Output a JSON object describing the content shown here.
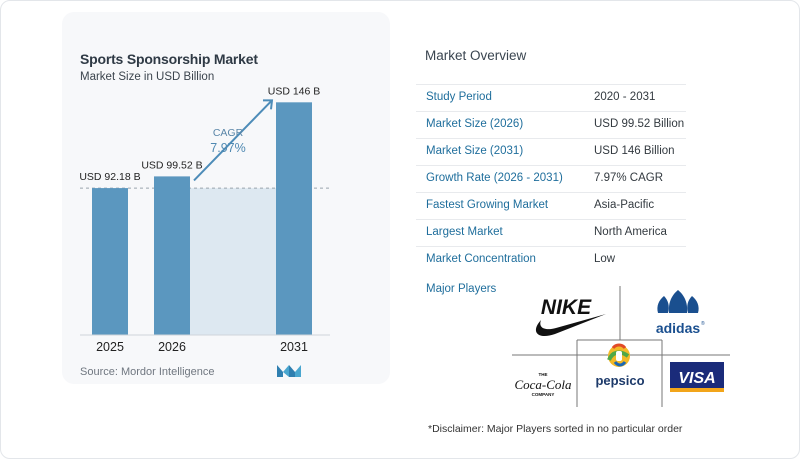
{
  "chart": {
    "title": "Sports Sponsorship Market",
    "subtitle": "Market Size in USD Billion",
    "source": "Source:  Mordor Intelligence",
    "cagr_label": "CAGR",
    "cagr_value": "7.97%"
  },
  "chart_data": {
    "type": "bar",
    "categories": [
      "2025",
      "2026",
      "2031"
    ],
    "values": [
      92.18,
      99.52,
      146
    ],
    "data_labels": [
      "USD 92.18 B",
      "USD 99.52 B",
      "USD 146 B"
    ],
    "title": "Sports Sponsorship Market",
    "subtitle": "Market Size in USD Billion",
    "xlabel": "",
    "ylabel": "",
    "ylim": [
      0,
      160
    ],
    "grid": false,
    "colors": {
      "bar": "#5b97bf",
      "band": "#dde8f1",
      "arrow": "#4d8cb8"
    }
  },
  "overview": {
    "title": "Market Overview",
    "rows": [
      {
        "label": "Study Period",
        "value": "2020 - 2031"
      },
      {
        "label": "Market Size (2026)",
        "value": "USD 99.52 Billion"
      },
      {
        "label": "Market Size (2031)",
        "value": "USD 146 Billion"
      },
      {
        "label": "Growth Rate (2026 - 2031)",
        "value": "7.97% CAGR"
      },
      {
        "label": "Fastest Growing Market",
        "value": "Asia-Pacific"
      },
      {
        "label": "Largest Market",
        "value": "North America"
      },
      {
        "label": "Market Concentration",
        "value": "Low"
      }
    ],
    "players_label": "Major Players",
    "players": [
      {
        "name": "NIKE",
        "icon": "nike-swoosh-logo"
      },
      {
        "name": "adidas",
        "icon": "adidas-trefoil-logo"
      },
      {
        "name": "Coca-Cola",
        "top": "THE",
        "bottom": "COMPANY",
        "icon": "coca-cola-logo"
      },
      {
        "name": "pepsico",
        "icon": "pepsico-logo"
      },
      {
        "name": "VISA",
        "icon": "visa-logo"
      }
    ],
    "disclaimer": "*Disclaimer: Major Players sorted in no particular order"
  }
}
